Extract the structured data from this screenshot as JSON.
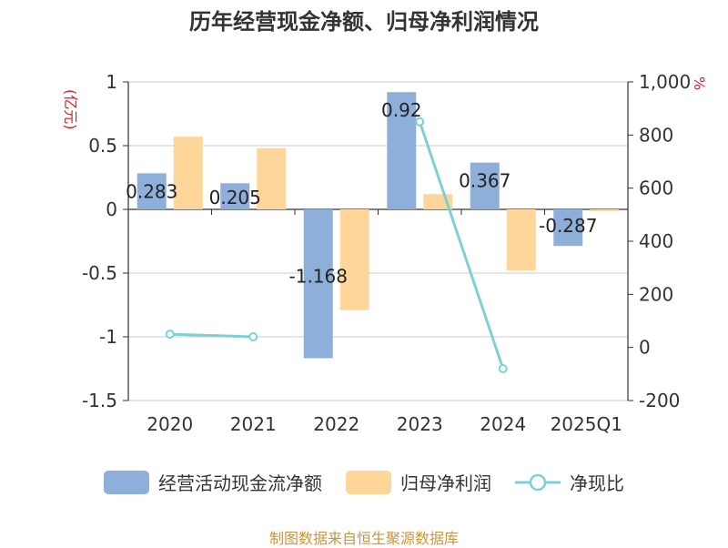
{
  "title": "历年经营现金净额、归母净利润情况",
  "source": "制图数据来自恒生聚源数据库",
  "colors": {
    "ocf": "#8fafdb",
    "profit": "#ffd699",
    "ratio": "#7ed0d4",
    "axis_unit": "#e11b22",
    "grid": "#cccccc",
    "text": "#333333"
  },
  "legend": [
    {
      "key": "ocf",
      "label": "经营活动现金流净额",
      "kind": "bar"
    },
    {
      "key": "profit",
      "label": "归母净利润",
      "kind": "bar"
    },
    {
      "key": "ratio",
      "label": "净现比",
      "kind": "line"
    }
  ],
  "chart_data": {
    "type": "bar",
    "title": "历年经营现金净额、归母净利润情况",
    "categories": [
      "2020",
      "2021",
      "2022",
      "2023",
      "2024",
      "2025Q1"
    ],
    "left_axis": {
      "unit": "(亿元)",
      "ylim": [
        -1.5,
        1
      ],
      "ticks": [
        1,
        0.5,
        0,
        -0.5,
        -1,
        -1.5
      ],
      "tick_labels": [
        "1",
        "0.5",
        "0",
        "-0.5",
        "-1",
        "-1.5"
      ]
    },
    "right_axis": {
      "unit": "%",
      "ylim": [
        -200,
        1000
      ],
      "ticks": [
        1000,
        800,
        600,
        400,
        200,
        0,
        -200
      ],
      "tick_labels": [
        "1,000",
        "800",
        "600",
        "400",
        "200",
        "0",
        "-200"
      ]
    },
    "series": [
      {
        "name": "经营活动现金流净额",
        "type": "bar",
        "axis": "left",
        "values": [
          0.283,
          0.205,
          -1.168,
          0.92,
          0.367,
          -0.287
        ],
        "labels": [
          "0.283",
          "0.205",
          "-1.168",
          "0.92",
          "0.367",
          "-0.287"
        ]
      },
      {
        "name": "归母净利润",
        "type": "bar",
        "axis": "left",
        "values": [
          0.57,
          0.48,
          -0.79,
          0.12,
          -0.48,
          -0.01
        ]
      },
      {
        "name": "净现比",
        "type": "line",
        "axis": "right",
        "values": [
          50,
          40,
          null,
          850,
          -80,
          null
        ]
      }
    ],
    "grid": true,
    "legend_position": "bottom"
  }
}
